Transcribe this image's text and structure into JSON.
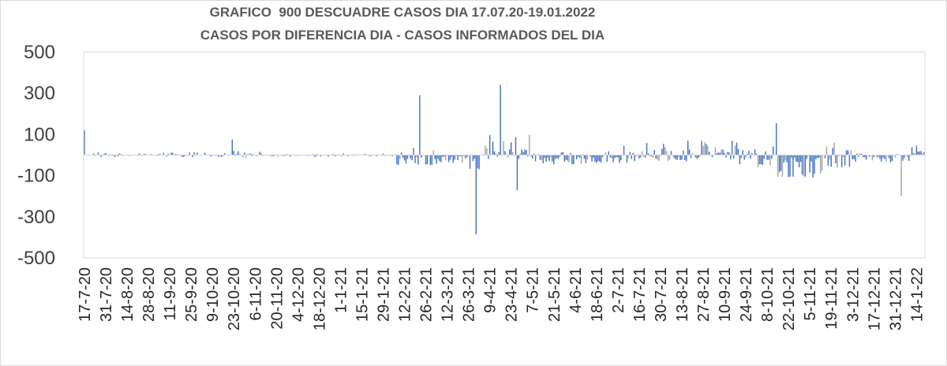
{
  "chart_data": {
    "type": "bar",
    "title": "GRAFICO  900 DESCUADRE CASOS DIA 17.07.20-19.01.2022",
    "subtitle": "CASOS POR DIFERENCIA DIA - CASOS INFORMADOS DEL DIA",
    "x_start": "17-7-20",
    "x_end": "19-1-22",
    "x_ticks": [
      "17-7-20",
      "31-7-20",
      "14-8-20",
      "28-8-20",
      "11-9-20",
      "25-9-20",
      "9-10-20",
      "23-10-20",
      "6-11-20",
      "20-11-20",
      "4-12-20",
      "18-12-20",
      "1-1-21",
      "15-1-21",
      "29-1-21",
      "12-2-21",
      "26-2-21",
      "12-3-21",
      "26-3-21",
      "9-4-21",
      "23-4-21",
      "7-5-21",
      "21-5-21",
      "4-6-21",
      "18-6-21",
      "2-7-21",
      "16-7-21",
      "30-7-21",
      "13-8-21",
      "27-8-21",
      "10-9-21",
      "24-9-21",
      "8-10-21",
      "22-10-21",
      "5-11-21",
      "19-11-21",
      "3-12-21",
      "17-12-21",
      "31-12-21",
      "14-1-22"
    ],
    "y_ticks": [
      "500",
      "300",
      "100",
      "-100",
      "-300",
      "-500"
    ],
    "ylim": [
      -500,
      500
    ],
    "grid": false,
    "colors": {
      "blue": "#4472c4",
      "gray": "#a5a5a5",
      "axis": "#d9d9d9",
      "text": "#404040"
    },
    "notable_values": [
      {
        "x": "17-7-20",
        "y": 120
      },
      {
        "x": "22-10-20",
        "y": 75
      },
      {
        "x": "22-2-21",
        "y": 290
      },
      {
        "x": "31-3-21",
        "y": -385
      },
      {
        "x": "16-4-21",
        "y": 340
      },
      {
        "x": "27-4-21",
        "y": -170
      },
      {
        "x": "14-10-21",
        "y": 155
      },
      {
        "x": "4-1-22",
        "y": -200
      }
    ],
    "segments": [
      {
        "from": "17-7-20",
        "to": "13-10-20",
        "y": [
          -10,
          15
        ]
      },
      {
        "from": "14-10-20",
        "to": "11-11-20",
        "y": [
          -15,
          20
        ]
      },
      {
        "from": "12-11-20",
        "to": "4-2-21",
        "y": [
          -8,
          8
        ]
      },
      {
        "from": "5-2-21",
        "to": "13-3-21",
        "y": [
          -50,
          45
        ]
      },
      {
        "from": "14-3-21",
        "to": "2-4-21",
        "y": [
          -70,
          40
        ]
      },
      {
        "from": "3-4-21",
        "to": "5-5-21",
        "y": [
          -20,
          110
        ]
      },
      {
        "from": "6-5-21",
        "to": "10-6-21",
        "y": [
          -45,
          20
        ]
      },
      {
        "from": "11-6-21",
        "to": "10-7-21",
        "y": [
          -40,
          50
        ]
      },
      {
        "from": "11-7-21",
        "to": "15-9-21",
        "y": [
          -30,
          70
        ]
      },
      {
        "from": "16-9-21",
        "to": "28-9-21",
        "y": [
          -45,
          70
        ]
      },
      {
        "from": "29-9-21",
        "to": "14-10-21",
        "y": [
          -60,
          50
        ]
      },
      {
        "from": "15-10-21",
        "to": "14-11-21",
        "y": [
          -110,
          10
        ]
      },
      {
        "from": "15-11-21",
        "to": "2-12-21",
        "y": [
          -60,
          100
        ]
      },
      {
        "from": "3-12-21",
        "to": "29-12-21",
        "y": [
          -35,
          10
        ]
      },
      {
        "from": "30-12-21",
        "to": "10-1-22",
        "y": [
          -50,
          10
        ]
      },
      {
        "from": "11-1-22",
        "to": "19-1-22",
        "y": [
          0,
          60
        ]
      }
    ]
  }
}
